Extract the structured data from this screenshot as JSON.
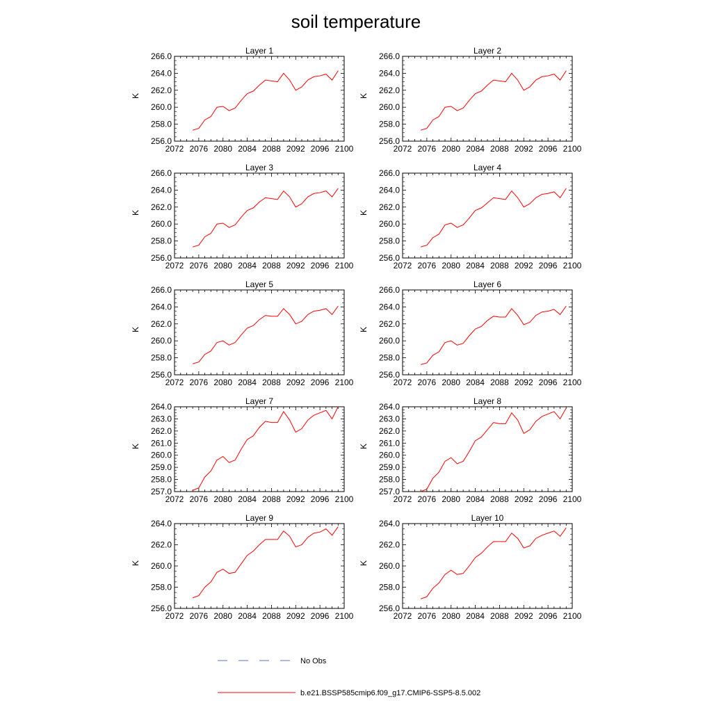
{
  "figure": {
    "title": "soil temperature",
    "legend": [
      {
        "label": "No Obs",
        "color": "#5a6fd0",
        "dash": "dashed"
      },
      {
        "label": "b.e21.BSSP585cmip6.f09_g17.CMIP6-SSP5-8.5.002",
        "color": "#ff0000",
        "dash": "solid"
      }
    ]
  },
  "chart_data": [
    {
      "type": "line",
      "title": "Layer 1",
      "ylabel": "K",
      "xlim": [
        2072,
        2100
      ],
      "xticks": [
        2072,
        2076,
        2080,
        2084,
        2088,
        2092,
        2096,
        2100
      ],
      "ylim": [
        256,
        266
      ],
      "yticks": [
        256,
        258,
        260,
        262,
        264,
        266
      ],
      "ytick_labels": [
        "256.0",
        "258.0",
        "260.0",
        "262.0",
        "264.0",
        "266.0"
      ],
      "x": [
        2075,
        2076,
        2077,
        2078,
        2079,
        2080,
        2081,
        2082,
        2083,
        2084,
        2085,
        2086,
        2087,
        2088,
        2089,
        2090,
        2091,
        2092,
        2093,
        2094,
        2095,
        2096,
        2097,
        2098,
        2099
      ],
      "series": [
        {
          "values": [
            257.3,
            257.5,
            258.5,
            258.9,
            260.0,
            260.1,
            259.6,
            259.9,
            260.8,
            261.6,
            261.9,
            262.6,
            263.2,
            263.1,
            263.0,
            264.0,
            263.2,
            262.0,
            262.4,
            263.2,
            263.6,
            263.7,
            263.9,
            263.2,
            264.3
          ]
        }
      ]
    },
    {
      "type": "line",
      "title": "Layer 2",
      "ylabel": "K",
      "xlim": [
        2072,
        2100
      ],
      "xticks": [
        2072,
        2076,
        2080,
        2084,
        2088,
        2092,
        2096,
        2100
      ],
      "ylim": [
        256,
        266
      ],
      "yticks": [
        256,
        258,
        260,
        262,
        264,
        266
      ],
      "ytick_labels": [
        "256.0",
        "258.0",
        "260.0",
        "262.0",
        "264.0",
        "266.0"
      ],
      "x": [
        2075,
        2076,
        2077,
        2078,
        2079,
        2080,
        2081,
        2082,
        2083,
        2084,
        2085,
        2086,
        2087,
        2088,
        2089,
        2090,
        2091,
        2092,
        2093,
        2094,
        2095,
        2096,
        2097,
        2098,
        2099
      ],
      "series": [
        {
          "values": [
            257.3,
            257.5,
            258.5,
            258.9,
            260.0,
            260.1,
            259.6,
            259.9,
            260.8,
            261.6,
            261.9,
            262.6,
            263.2,
            263.1,
            263.0,
            264.0,
            263.2,
            262.0,
            262.4,
            263.2,
            263.6,
            263.7,
            263.9,
            263.2,
            264.3
          ]
        }
      ]
    },
    {
      "type": "line",
      "title": "Layer 3",
      "ylabel": "K",
      "xlim": [
        2072,
        2100
      ],
      "xticks": [
        2072,
        2076,
        2080,
        2084,
        2088,
        2092,
        2096,
        2100
      ],
      "ylim": [
        256,
        266
      ],
      "yticks": [
        256,
        258,
        260,
        262,
        264,
        266
      ],
      "ytick_labels": [
        "256.0",
        "258.0",
        "260.0",
        "262.0",
        "264.0",
        "266.0"
      ],
      "x": [
        2075,
        2076,
        2077,
        2078,
        2079,
        2080,
        2081,
        2082,
        2083,
        2084,
        2085,
        2086,
        2087,
        2088,
        2089,
        2090,
        2091,
        2092,
        2093,
        2094,
        2095,
        2096,
        2097,
        2098,
        2099
      ],
      "series": [
        {
          "values": [
            257.3,
            257.5,
            258.5,
            258.9,
            260.0,
            260.1,
            259.6,
            259.9,
            260.8,
            261.6,
            261.9,
            262.6,
            263.1,
            263.0,
            262.9,
            263.9,
            263.2,
            262.0,
            262.4,
            263.2,
            263.6,
            263.7,
            263.9,
            263.2,
            264.2
          ]
        }
      ]
    },
    {
      "type": "line",
      "title": "Layer 4",
      "ylabel": "K",
      "xlim": [
        2072,
        2100
      ],
      "xticks": [
        2072,
        2076,
        2080,
        2084,
        2088,
        2092,
        2096,
        2100
      ],
      "ylim": [
        256,
        266
      ],
      "yticks": [
        256,
        258,
        260,
        262,
        264,
        266
      ],
      "ytick_labels": [
        "256.0",
        "258.0",
        "260.0",
        "262.0",
        "264.0",
        "266.0"
      ],
      "x": [
        2075,
        2076,
        2077,
        2078,
        2079,
        2080,
        2081,
        2082,
        2083,
        2084,
        2085,
        2086,
        2087,
        2088,
        2089,
        2090,
        2091,
        2092,
        2093,
        2094,
        2095,
        2096,
        2097,
        2098,
        2099
      ],
      "series": [
        {
          "values": [
            257.3,
            257.5,
            258.4,
            258.8,
            259.9,
            260.1,
            259.6,
            259.9,
            260.7,
            261.6,
            261.9,
            262.5,
            263.1,
            263.0,
            262.9,
            263.9,
            263.1,
            262.0,
            262.4,
            263.1,
            263.5,
            263.6,
            263.8,
            263.1,
            264.2
          ]
        }
      ]
    },
    {
      "type": "line",
      "title": "Layer 5",
      "ylabel": "K",
      "xlim": [
        2072,
        2100
      ],
      "xticks": [
        2072,
        2076,
        2080,
        2084,
        2088,
        2092,
        2096,
        2100
      ],
      "ylim": [
        256,
        266
      ],
      "yticks": [
        256,
        258,
        260,
        262,
        264,
        266
      ],
      "ytick_labels": [
        "256.0",
        "258.0",
        "260.0",
        "262.0",
        "264.0",
        "266.0"
      ],
      "x": [
        2075,
        2076,
        2077,
        2078,
        2079,
        2080,
        2081,
        2082,
        2083,
        2084,
        2085,
        2086,
        2087,
        2088,
        2089,
        2090,
        2091,
        2092,
        2093,
        2094,
        2095,
        2096,
        2097,
        2098,
        2099
      ],
      "series": [
        {
          "values": [
            257.3,
            257.5,
            258.4,
            258.8,
            259.8,
            260.0,
            259.5,
            259.8,
            260.7,
            261.5,
            261.8,
            262.5,
            263.0,
            262.9,
            262.9,
            263.8,
            263.1,
            262.0,
            262.3,
            263.1,
            263.5,
            263.6,
            263.8,
            263.1,
            264.1
          ]
        }
      ]
    },
    {
      "type": "line",
      "title": "Layer 6",
      "ylabel": "K",
      "xlim": [
        2072,
        2100
      ],
      "xticks": [
        2072,
        2076,
        2080,
        2084,
        2088,
        2092,
        2096,
        2100
      ],
      "ylim": [
        256,
        266
      ],
      "yticks": [
        256,
        258,
        260,
        262,
        264,
        266
      ],
      "ytick_labels": [
        "256.0",
        "258.0",
        "260.0",
        "262.0",
        "264.0",
        "266.0"
      ],
      "x": [
        2075,
        2076,
        2077,
        2078,
        2079,
        2080,
        2081,
        2082,
        2083,
        2084,
        2085,
        2086,
        2087,
        2088,
        2089,
        2090,
        2091,
        2092,
        2093,
        2094,
        2095,
        2096,
        2097,
        2098,
        2099
      ],
      "series": [
        {
          "values": [
            257.2,
            257.4,
            258.3,
            258.7,
            259.8,
            260.0,
            259.5,
            259.7,
            260.6,
            261.4,
            261.7,
            262.4,
            262.9,
            262.8,
            262.8,
            263.8,
            263.0,
            261.9,
            262.2,
            263.0,
            263.4,
            263.5,
            263.7,
            263.1,
            264.1
          ]
        }
      ]
    },
    {
      "type": "line",
      "title": "Layer 7",
      "ylabel": "K",
      "xlim": [
        2072,
        2100
      ],
      "xticks": [
        2072,
        2076,
        2080,
        2084,
        2088,
        2092,
        2096,
        2100
      ],
      "ylim": [
        257,
        264
      ],
      "yticks": [
        257,
        258,
        259,
        260,
        261,
        262,
        263,
        264
      ],
      "ytick_labels": [
        "257.0",
        "258.0",
        "259.0",
        "260.0",
        "261.0",
        "262.0",
        "263.0",
        "264.0"
      ],
      "x": [
        2075,
        2076,
        2077,
        2078,
        2079,
        2080,
        2081,
        2082,
        2083,
        2084,
        2085,
        2086,
        2087,
        2088,
        2089,
        2090,
        2091,
        2092,
        2093,
        2094,
        2095,
        2096,
        2097,
        2098,
        2099
      ],
      "series": [
        {
          "values": [
            257.1,
            257.3,
            258.2,
            258.7,
            259.6,
            259.9,
            259.4,
            259.6,
            260.5,
            261.3,
            261.6,
            262.3,
            262.8,
            262.7,
            262.7,
            263.6,
            262.9,
            261.9,
            262.2,
            262.9,
            263.3,
            263.5,
            263.7,
            263.0,
            264.0
          ]
        }
      ]
    },
    {
      "type": "line",
      "title": "Layer 8",
      "ylabel": "K",
      "xlim": [
        2072,
        2100
      ],
      "xticks": [
        2072,
        2076,
        2080,
        2084,
        2088,
        2092,
        2096,
        2100
      ],
      "ylim": [
        257,
        264
      ],
      "yticks": [
        257,
        258,
        259,
        260,
        261,
        262,
        263,
        264
      ],
      "ytick_labels": [
        "257.0",
        "258.0",
        "259.0",
        "260.0",
        "261.0",
        "262.0",
        "263.0",
        "264.0"
      ],
      "x": [
        2075,
        2076,
        2077,
        2078,
        2079,
        2080,
        2081,
        2082,
        2083,
        2084,
        2085,
        2086,
        2087,
        2088,
        2089,
        2090,
        2091,
        2092,
        2093,
        2094,
        2095,
        2096,
        2097,
        2098,
        2099
      ],
      "series": [
        {
          "values": [
            257.0,
            257.2,
            258.1,
            258.6,
            259.5,
            259.8,
            259.3,
            259.5,
            260.3,
            261.2,
            261.5,
            262.1,
            262.7,
            262.6,
            262.6,
            263.5,
            262.9,
            261.8,
            262.1,
            262.8,
            263.2,
            263.4,
            263.6,
            263.0,
            263.9
          ]
        }
      ]
    },
    {
      "type": "line",
      "title": "Layer 9",
      "ylabel": "K",
      "xlim": [
        2072,
        2100
      ],
      "xticks": [
        2072,
        2076,
        2080,
        2084,
        2088,
        2092,
        2096,
        2100
      ],
      "ylim": [
        256,
        264
      ],
      "yticks": [
        256,
        258,
        260,
        262,
        264
      ],
      "ytick_labels": [
        "256.0",
        "258.0",
        "260.0",
        "262.0",
        "264.0"
      ],
      "x": [
        2075,
        2076,
        2077,
        2078,
        2079,
        2080,
        2081,
        2082,
        2083,
        2084,
        2085,
        2086,
        2087,
        2088,
        2089,
        2090,
        2091,
        2092,
        2093,
        2094,
        2095,
        2096,
        2097,
        2098,
        2099
      ],
      "series": [
        {
          "values": [
            257.0,
            257.2,
            258.0,
            258.5,
            259.4,
            259.7,
            259.3,
            259.4,
            260.2,
            261.0,
            261.4,
            262.0,
            262.5,
            262.5,
            262.5,
            263.3,
            262.8,
            261.8,
            262.0,
            262.7,
            263.1,
            263.2,
            263.5,
            262.9,
            263.7
          ]
        }
      ]
    },
    {
      "type": "line",
      "title": "Layer 10",
      "ylabel": "K",
      "xlim": [
        2072,
        2100
      ],
      "xticks": [
        2072,
        2076,
        2080,
        2084,
        2088,
        2092,
        2096,
        2100
      ],
      "ylim": [
        256,
        264
      ],
      "yticks": [
        256,
        258,
        260,
        262,
        264
      ],
      "ytick_labels": [
        "256.0",
        "258.0",
        "260.0",
        "262.0",
        "264.0"
      ],
      "x": [
        2075,
        2076,
        2077,
        2078,
        2079,
        2080,
        2081,
        2082,
        2083,
        2084,
        2085,
        2086,
        2087,
        2088,
        2089,
        2090,
        2091,
        2092,
        2093,
        2094,
        2095,
        2096,
        2097,
        2098,
        2099
      ],
      "series": [
        {
          "values": [
            256.9,
            257.1,
            257.9,
            258.4,
            259.2,
            259.6,
            259.2,
            259.3,
            260.0,
            260.8,
            261.2,
            261.8,
            262.3,
            262.3,
            262.3,
            263.1,
            262.6,
            261.7,
            261.9,
            262.6,
            262.9,
            263.1,
            263.3,
            262.8,
            263.6
          ]
        }
      ]
    }
  ]
}
